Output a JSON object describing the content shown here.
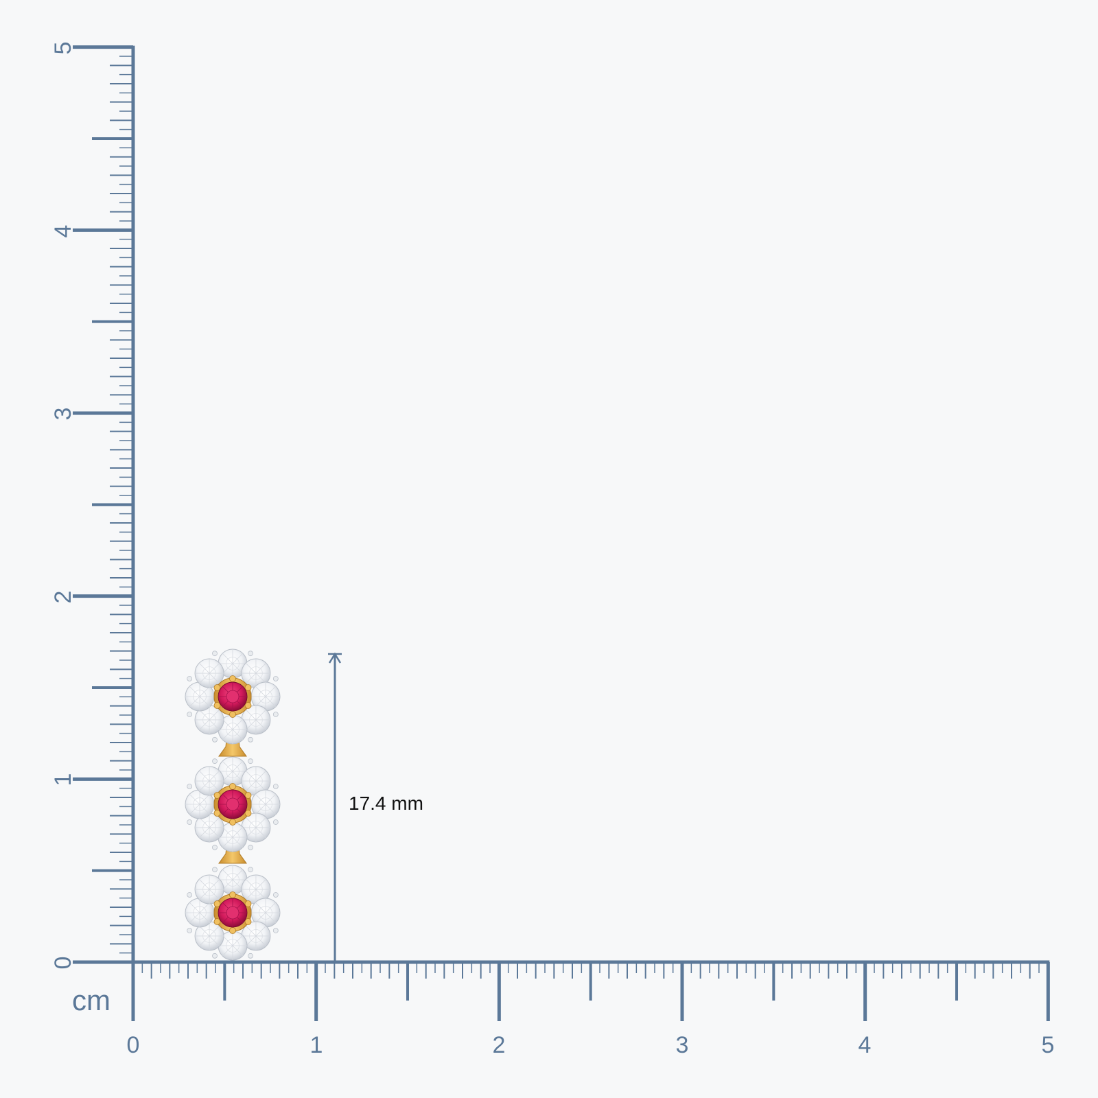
{
  "ruler": {
    "unit_label": "cm",
    "x_labels": [
      "0",
      "1",
      "2",
      "3",
      "4",
      "5"
    ],
    "y_labels": [
      "0",
      "1",
      "2",
      "3",
      "4",
      "5"
    ],
    "color": "#5b7898"
  },
  "measurement": {
    "label": "17.4 mm"
  },
  "product": {
    "type": "three-flower drop earring",
    "center_stone_color": "#d21a5c",
    "metal_color": "#e8b24a",
    "accent_stone_color": "#ffffff"
  }
}
